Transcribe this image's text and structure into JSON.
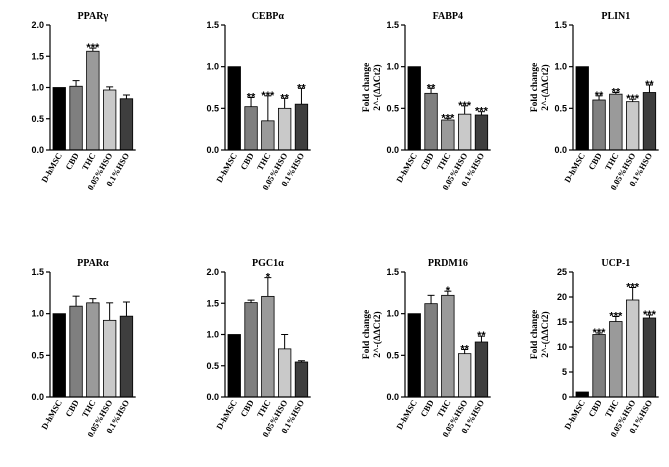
{
  "figure": {
    "bar_colors": [
      "#000000",
      "#7f7f7f",
      "#9a9a9a",
      "#c9c9c9",
      "#3e3e3e"
    ]
  },
  "chart_data": [
    {
      "type": "bar",
      "title": "PPARγ",
      "categories": [
        "D-hMSC",
        "CBD",
        "THC",
        "0.05%HSO",
        "0.1%HSO"
      ],
      "values": [
        1.0,
        1.02,
        1.58,
        0.96,
        0.82
      ],
      "errors": [
        0.0,
        0.09,
        0.05,
        0.05,
        0.06
      ],
      "significance": [
        "",
        "",
        "***",
        "",
        ""
      ],
      "ylim": [
        0,
        2.0
      ],
      "yticks": [
        "0.0",
        "0.5",
        "1.0",
        "1.5",
        "2.0"
      ],
      "ylabel": [
        "Fold change",
        "2^-(ΔΔCt2)"
      ],
      "show_ylabel": false
    },
    {
      "type": "bar",
      "title": "CEBPα",
      "categories": [
        "D-hMSC",
        "CBD",
        "THC",
        "0.05%HSO",
        "0.1%HSO"
      ],
      "values": [
        1.0,
        0.52,
        0.35,
        0.5,
        0.55
      ],
      "errors": [
        0.0,
        0.11,
        0.3,
        0.12,
        0.19
      ],
      "significance": [
        "",
        "**",
        "***",
        "**",
        "**"
      ],
      "ylim": [
        0,
        1.5
      ],
      "yticks": [
        "0.0",
        "0.5",
        "1.0",
        "1.5"
      ],
      "ylabel": [
        "Fold change",
        "2^-(ΔΔCt2)"
      ],
      "show_ylabel": false
    },
    {
      "type": "bar",
      "title": "FABP4",
      "categories": [
        "D-hMSC",
        "CBD",
        "THC",
        "0.05%HSO",
        "0.1%HSO"
      ],
      "values": [
        1.0,
        0.68,
        0.36,
        0.43,
        0.42
      ],
      "errors": [
        0.0,
        0.06,
        0.02,
        0.1,
        0.04
      ],
      "significance": [
        "",
        "**",
        "***",
        "***",
        "***"
      ],
      "ylim": [
        0,
        1.5
      ],
      "yticks": [
        "0.0",
        "0.5",
        "1.0",
        "1.5"
      ],
      "ylabel": [
        "Fold change",
        "2^-(ΔΔCt2)"
      ],
      "show_ylabel": true
    },
    {
      "type": "bar",
      "title": "PLIN1",
      "categories": [
        "D-hMSC",
        "CBD",
        "THC",
        "0.05%HSO",
        "0.1%HSO"
      ],
      "values": [
        1.0,
        0.6,
        0.67,
        0.58,
        0.69
      ],
      "errors": [
        0.0,
        0.05,
        0.02,
        0.03,
        0.09
      ],
      "significance": [
        "",
        "**",
        "**",
        "***",
        "**"
      ],
      "ylim": [
        0,
        1.5
      ],
      "yticks": [
        "0.0",
        "0.5",
        "1.0",
        "1.5"
      ],
      "ylabel": [
        "Fold change",
        "2^-(ΔΔCt2)"
      ],
      "show_ylabel": true
    },
    {
      "type": "bar",
      "title": "PPARα",
      "categories": [
        "D-hMSC",
        "CBD",
        "THC",
        "0.05%HSO",
        "0.1%HSO"
      ],
      "values": [
        1.0,
        1.09,
        1.13,
        0.92,
        0.97
      ],
      "errors": [
        0.0,
        0.12,
        0.05,
        0.21,
        0.17
      ],
      "significance": [
        "",
        "",
        "",
        "",
        ""
      ],
      "ylim": [
        0,
        1.5
      ],
      "yticks": [
        "0.0",
        "0.5",
        "1.0",
        "1.5"
      ],
      "ylabel": [
        "Fold change",
        "2^-(ΔΔCt2)"
      ],
      "show_ylabel": false
    },
    {
      "type": "bar",
      "title": "PGC1α",
      "categories": [
        "D-hMSC",
        "CBD",
        "THC",
        "0.05%HSO",
        "0.1%HSO"
      ],
      "values": [
        1.0,
        1.51,
        1.61,
        0.77,
        0.56
      ],
      "errors": [
        0.0,
        0.04,
        0.3,
        0.23,
        0.02
      ],
      "significance": [
        "",
        "",
        "*",
        "",
        ""
      ],
      "ylim": [
        0,
        2.0
      ],
      "yticks": [
        "0.0",
        "0.5",
        "1.0",
        "1.5",
        "2.0"
      ],
      "ylabel": [
        "Fold change",
        "2^-(ΔΔCt2)"
      ],
      "show_ylabel": false
    },
    {
      "type": "bar",
      "title": "PRDM16",
      "categories": [
        "D-hMSC",
        "CBD",
        "THC",
        "0.05%HSO",
        "0.1%HSO"
      ],
      "values": [
        1.0,
        1.12,
        1.22,
        0.52,
        0.66
      ],
      "errors": [
        0.0,
        0.1,
        0.05,
        0.05,
        0.07
      ],
      "significance": [
        "",
        "",
        "*",
        "**",
        "**"
      ],
      "ylim": [
        0,
        1.5
      ],
      "yticks": [
        "0.0",
        "0.5",
        "1.0",
        "1.5"
      ],
      "ylabel": [
        "Fold change",
        "2^-(ΔΔCt2)"
      ],
      "show_ylabel": true
    },
    {
      "type": "bar",
      "title": "UCP-1",
      "categories": [
        "D-hMSC",
        "CBD",
        "THC",
        "0.05%HSO",
        "0.1%HSO"
      ],
      "values": [
        1.0,
        12.5,
        15.1,
        19.4,
        15.8
      ],
      "errors": [
        0.0,
        0.3,
        1.0,
        2.5,
        0.6
      ],
      "significance": [
        "",
        "***",
        "***",
        "***",
        "***"
      ],
      "ylim": [
        0,
        25
      ],
      "yticks": [
        "0",
        "5",
        "10",
        "15",
        "20",
        "25"
      ],
      "ylabel": [
        "Fold change",
        "2^-(ΔΔCt2)"
      ],
      "show_ylabel": true
    }
  ]
}
